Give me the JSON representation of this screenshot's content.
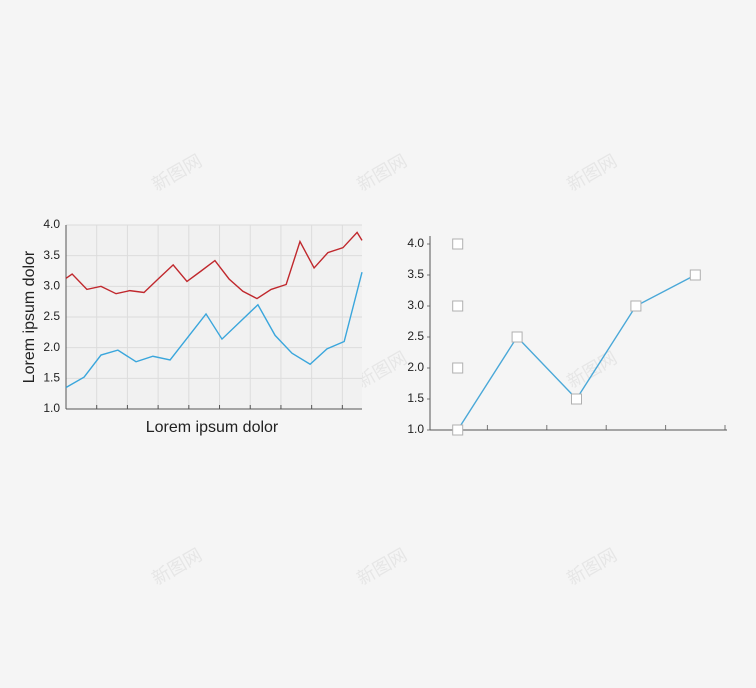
{
  "watermark": "新图网",
  "chart_data": [
    {
      "type": "line",
      "ylabel": "Lorem ipsum dolor",
      "xlabel": "Lorem ipsum dolor",
      "xlim": [
        0,
        9.64
      ],
      "xticks": [
        0,
        1,
        2,
        3,
        4,
        5,
        6,
        7,
        8,
        9
      ],
      "ylim": [
        1,
        4
      ],
      "yticks": [
        {
          "value": 1,
          "label": "1.0"
        },
        {
          "value": 1.5,
          "label": "1.5"
        },
        {
          "value": 2,
          "label": "2.0"
        },
        {
          "value": 2.5,
          "label": "2.5"
        },
        {
          "value": 3,
          "label": "3.0"
        },
        {
          "value": 3.5,
          "label": "3.5"
        },
        {
          "value": 4,
          "label": "4.0"
        }
      ],
      "grid": true,
      "series": [
        {
          "color": "#c0282d",
          "x": [
            0,
            0.2,
            0.68,
            1.14,
            1.63,
            2.08,
            2.54,
            3.0,
            3.49,
            3.94,
            4.4,
            4.85,
            5.31,
            5.76,
            6.22,
            6.68,
            7.17,
            7.62,
            8.08,
            8.53,
            9.02,
            9.48,
            9.64
          ],
          "values": [
            3.13,
            3.2,
            2.95,
            3.0,
            2.88,
            2.93,
            2.9,
            3.12,
            3.35,
            3.08,
            3.25,
            3.42,
            3.12,
            2.92,
            2.8,
            2.95,
            3.03,
            3.73,
            3.3,
            3.55,
            3.63,
            3.88,
            3.75
          ]
        },
        {
          "color": "#3aa6dc",
          "x": [
            0,
            0.59,
            1.14,
            1.69,
            2.28,
            2.83,
            3.39,
            4.56,
            5.08,
            6.25,
            6.81,
            7.36,
            7.95,
            8.5,
            9.06,
            9.64
          ],
          "values": [
            1.35,
            1.52,
            1.88,
            1.96,
            1.77,
            1.86,
            1.8,
            2.55,
            2.14,
            2.7,
            2.2,
            1.91,
            1.73,
            1.98,
            2.1,
            3.23
          ]
        }
      ]
    },
    {
      "type": "line",
      "categories": [
        null,
        null,
        null,
        null,
        null
      ],
      "ylim": [
        1,
        4
      ],
      "yticks": [
        {
          "value": 1,
          "label": "1.0"
        },
        {
          "value": 1.5,
          "label": "1.5"
        },
        {
          "value": 2,
          "label": "2.0"
        },
        {
          "value": 2.5,
          "label": "2.5"
        },
        {
          "value": 3,
          "label": "3.0"
        },
        {
          "value": 3.5,
          "label": "3.5"
        },
        {
          "value": 4,
          "label": "4.0"
        }
      ],
      "grid": false,
      "series": [
        {
          "color": "#4aa8d8",
          "line": true,
          "values": [
            1.0,
            2.5,
            1.5,
            3.0,
            3.5
          ]
        },
        {
          "color": "#b8b8b8",
          "line": false,
          "values": [
            4.0,
            null,
            null,
            null,
            null
          ]
        },
        {
          "color": "#b8b8b8",
          "line": false,
          "values": [
            3.0,
            null,
            null,
            null,
            null
          ]
        },
        {
          "color": "#b8b8b8",
          "line": false,
          "values": [
            2.0,
            null,
            null,
            null,
            null
          ]
        }
      ]
    }
  ]
}
